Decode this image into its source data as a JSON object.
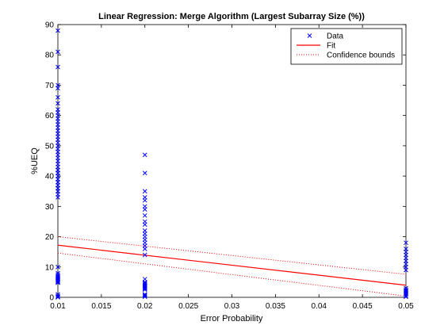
{
  "chart_data": {
    "type": "scatter",
    "title": "Linear Regression: Merge Algorithm (Largest Subarray Size (%))",
    "xlabel": "Error Probability",
    "ylabel": "%UEQ",
    "xlim": [
      0.01,
      0.05
    ],
    "ylim": [
      0,
      90
    ],
    "xticks": [
      0.01,
      0.015,
      0.02,
      0.025,
      0.03,
      0.035,
      0.04,
      0.045,
      0.05
    ],
    "xtick_labels": [
      "0.01",
      "0.015",
      "0.02",
      "0.025",
      "0.03",
      "0.035",
      "0.04",
      "0.045",
      "0.05"
    ],
    "yticks": [
      0,
      10,
      20,
      30,
      40,
      50,
      60,
      70,
      80,
      90
    ],
    "ytick_labels": [
      "0",
      "10",
      "20",
      "30",
      "40",
      "50",
      "60",
      "70",
      "80",
      "90"
    ],
    "grid": false,
    "legend_position": "top-right",
    "legend": {
      "data": "Data",
      "fit": "Fit",
      "bounds": "Confidence bounds"
    },
    "colors": {
      "data": "#0000ff",
      "fit": "#ff0000",
      "bounds": "#ff0000"
    },
    "series": [
      {
        "name": "Data",
        "x": [
          0.01,
          0.01,
          0.01,
          0.01,
          0.01,
          0.01,
          0.01,
          0.01,
          0.01,
          0.01,
          0.01,
          0.01,
          0.01,
          0.01,
          0.01,
          0.01,
          0.01,
          0.01,
          0.01,
          0.01,
          0.01,
          0.01,
          0.01,
          0.01,
          0.01,
          0.01,
          0.01,
          0.01,
          0.01,
          0.01,
          0.01,
          0.01,
          0.01,
          0.01,
          0.01,
          0.01,
          0.01,
          0.01,
          0.01,
          0.01,
          0.01,
          0.01,
          0.01,
          0.01,
          0.01,
          0.01,
          0.01,
          0.01,
          0.01,
          0.01,
          0.01,
          0.01,
          0.01,
          0.01,
          0.01,
          0.01,
          0.01,
          0.01,
          0.01,
          0.01,
          0.01,
          0.02,
          0.02,
          0.02,
          0.02,
          0.02,
          0.02,
          0.02,
          0.02,
          0.02,
          0.02,
          0.02,
          0.02,
          0.02,
          0.02,
          0.02,
          0.02,
          0.02,
          0.02,
          0.02,
          0.02,
          0.02,
          0.02,
          0.02,
          0.02,
          0.02,
          0.02,
          0.02,
          0.02,
          0.02,
          0.02,
          0.02,
          0.02,
          0.02,
          0.02,
          0.05,
          0.05,
          0.05,
          0.05,
          0.05,
          0.05,
          0.05,
          0.05,
          0.05,
          0.05,
          0.05,
          0.05,
          0.05,
          0.05,
          0.05,
          0.05,
          0.05,
          0.05,
          0.05
        ],
        "y": [
          88,
          81,
          76,
          70,
          69,
          66,
          64,
          58,
          57,
          56,
          55,
          54,
          53,
          52,
          51,
          49,
          48,
          47,
          46,
          45,
          44,
          43,
          42,
          41,
          40,
          39,
          38,
          37,
          36,
          35,
          34,
          33,
          10,
          8,
          7.5,
          7,
          6.8,
          6.5,
          6.2,
          6,
          5.8,
          5.5,
          5.2,
          5,
          4.8,
          1,
          0.5,
          0.2,
          0,
          59,
          60,
          61,
          62,
          39,
          41,
          42,
          35,
          36,
          37,
          38,
          50,
          47,
          41,
          35,
          33,
          32,
          30,
          29,
          27,
          25,
          24,
          22,
          21,
          20,
          19,
          18,
          17,
          16,
          14,
          6,
          5,
          4.8,
          4.5,
          4.2,
          4,
          3.8,
          3.5,
          3.2,
          3,
          2.8,
          2.5,
          1,
          0.8,
          0.5,
          0.2,
          18,
          16,
          15,
          14,
          13,
          12,
          11,
          10,
          9,
          3,
          2.5,
          2.2,
          2,
          1.8,
          1.5,
          1.2,
          1,
          0.5,
          0.2
        ]
      }
    ],
    "fit": {
      "x": [
        0.01,
        0.05
      ],
      "y": [
        17.2,
        4.0
      ]
    },
    "bounds_upper": {
      "x": [
        0.01,
        0.05
      ],
      "y": [
        20.0,
        7.6
      ]
    },
    "bounds_lower": {
      "x": [
        0.01,
        0.05
      ],
      "y": [
        14.6,
        0.4
      ]
    }
  }
}
